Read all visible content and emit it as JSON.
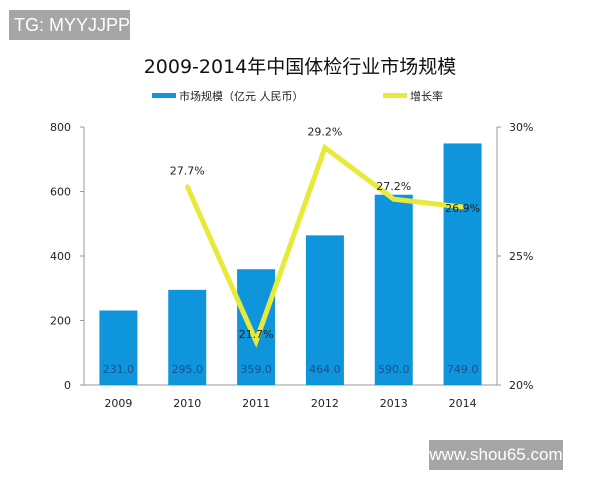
{
  "watermarks": {
    "top": "TG: MYYJJPP",
    "bottom": "www.shou65.com"
  },
  "chart_data": {
    "type": "bar+line",
    "title": "2009-2014年中国体检行业市场规模",
    "categories": [
      "2009",
      "2010",
      "2011",
      "2012",
      "2013",
      "2014"
    ],
    "series": [
      {
        "name": "市场规模（亿元 人民币）",
        "type": "bar",
        "axis": "left",
        "color": "#0f95dc",
        "values": [
          231.0,
          295.0,
          359.0,
          464.0,
          590.0,
          749.0
        ],
        "labels": [
          "231.0",
          "295.0",
          "359.0",
          "464.0",
          "590.0",
          "749.0"
        ]
      },
      {
        "name": "增长率",
        "type": "line",
        "axis": "right",
        "color": "#e8ea3a",
        "values": [
          null,
          27.7,
          21.7,
          29.2,
          27.2,
          26.9
        ],
        "labels": [
          "",
          "27.7%",
          "21.7%",
          "29.2%",
          "27.2%",
          "26.9%"
        ]
      }
    ],
    "yleft": {
      "lim": [
        0,
        800
      ],
      "ticks": [
        "0",
        "200",
        "400",
        "600",
        "800"
      ]
    },
    "yright": {
      "lim": [
        20,
        30
      ],
      "ticks": [
        "20%",
        "25%",
        "30%"
      ]
    },
    "legend": "top",
    "grid": false
  }
}
